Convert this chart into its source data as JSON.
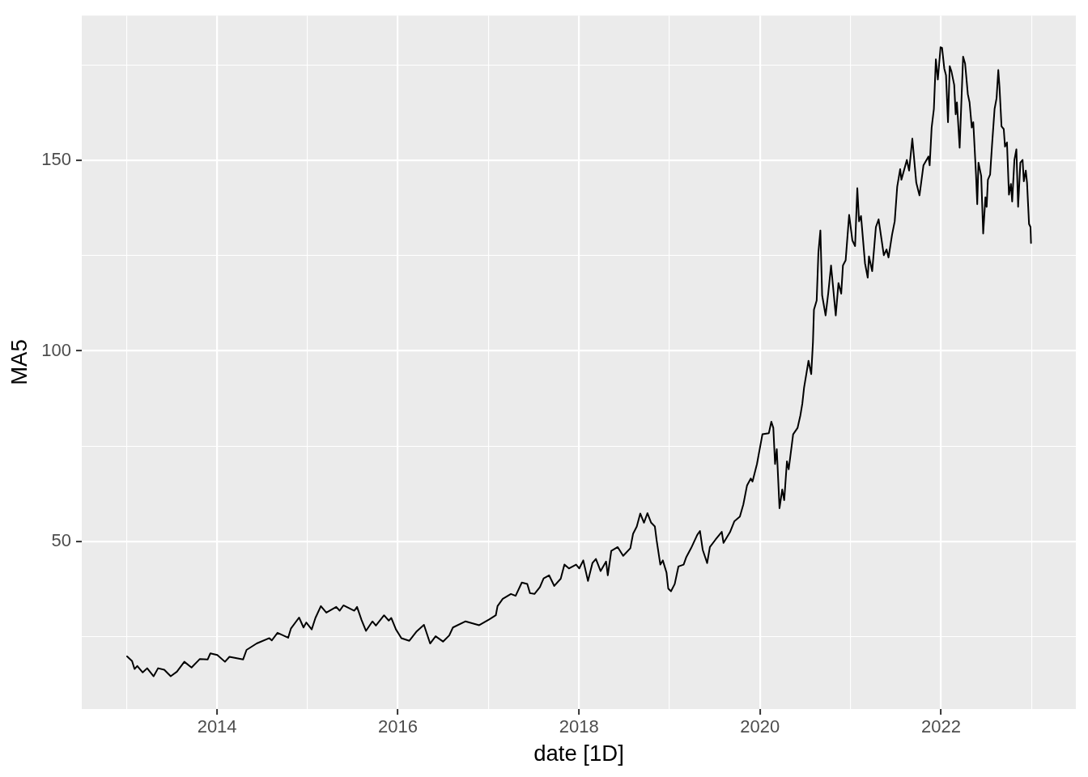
{
  "chart_data": {
    "type": "line",
    "xlabel": "date [1D]",
    "ylabel": "MA5",
    "x": [
      "2013-01-03",
      "2013-01-23",
      "2013-02-02",
      "2013-02-13",
      "2013-03-07",
      "2013-03-25",
      "2013-04-20",
      "2013-05-08",
      "2013-06-02",
      "2013-06-28",
      "2013-07-23",
      "2013-08-22",
      "2013-09-20",
      "2013-10-23",
      "2013-11-24",
      "2013-12-05",
      "2014-01-02",
      "2014-02-02",
      "2014-02-20",
      "2014-04-16",
      "2014-04-30",
      "2014-06-10",
      "2014-07-31",
      "2014-08-10",
      "2014-09-02",
      "2014-10-15",
      "2014-10-26",
      "2014-11-28",
      "2014-12-16",
      "2014-12-27",
      "2015-01-18",
      "2015-02-02",
      "2015-02-24",
      "2015-03-18",
      "2015-04-27",
      "2015-05-11",
      "2015-05-26",
      "2015-07-09",
      "2015-07-20",
      "2015-08-07",
      "2015-08-25",
      "2015-09-20",
      "2015-10-04",
      "2015-11-06",
      "2015-11-25",
      "2015-12-05",
      "2015-12-24",
      "2016-01-15",
      "2016-02-16",
      "2016-03-17",
      "2016-04-15",
      "2016-05-10",
      "2016-06-01",
      "2016-07-01",
      "2016-07-26",
      "2016-08-10",
      "2016-09-30",
      "2016-11-24",
      "2017-01-03",
      "2017-01-30",
      "2017-02-06",
      "2017-02-27",
      "2017-04-01",
      "2017-04-20",
      "2017-05-15",
      "2017-06-06",
      "2017-06-17",
      "2017-07-05",
      "2017-07-27",
      "2017-08-11",
      "2017-09-02",
      "2017-09-23",
      "2017-10-19",
      "2017-11-03",
      "2017-11-21",
      "2017-12-20",
      "2018-01-02",
      "2018-01-18",
      "2018-02-06",
      "2018-02-24",
      "2018-03-10",
      "2018-03-29",
      "2018-04-20",
      "2018-04-27",
      "2018-05-11",
      "2018-06-06",
      "2018-06-28",
      "2018-07-27",
      "2018-08-07",
      "2018-08-22",
      "2018-09-05",
      "2018-09-20",
      "2018-10-04",
      "2018-10-19",
      "2018-11-03",
      "2018-11-10",
      "2018-11-25",
      "2018-12-05",
      "2018-12-20",
      "2018-12-27",
      "2019-01-07",
      "2019-01-22",
      "2019-02-06",
      "2019-02-27",
      "2019-03-10",
      "2019-03-29",
      "2019-04-23",
      "2019-05-04",
      "2019-05-15",
      "2019-06-02",
      "2019-06-13",
      "2019-07-05",
      "2019-07-31",
      "2019-08-07",
      "2019-09-02",
      "2019-09-20",
      "2019-10-12",
      "2019-10-26",
      "2019-11-10",
      "2019-11-25",
      "2019-12-02",
      "2019-12-20",
      "2020-01-11",
      "2020-02-06",
      "2020-02-16",
      "2020-02-24",
      "2020-03-02",
      "2020-03-09",
      "2020-03-20",
      "2020-03-31",
      "2020-04-08",
      "2020-04-19",
      "2020-04-26",
      "2020-05-14",
      "2020-06-01",
      "2020-06-12",
      "2020-06-20",
      "2020-06-27",
      "2020-07-08",
      "2020-07-15",
      "2020-07-26",
      "2020-08-02",
      "2020-08-06",
      "2020-08-17",
      "2020-08-24",
      "2020-09-01",
      "2020-09-08",
      "2020-09-22",
      "2020-10-03",
      "2020-10-14",
      "2020-11-02",
      "2020-11-13",
      "2020-11-24",
      "2020-12-01",
      "2020-12-12",
      "2020-12-26",
      "2021-01-08",
      "2021-01-19",
      "2021-01-28",
      "2021-02-04",
      "2021-02-12",
      "2021-02-28",
      "2021-03-11",
      "2021-03-16",
      "2021-03-29",
      "2021-04-13",
      "2021-04-24",
      "2021-05-15",
      "2021-05-26",
      "2021-06-03",
      "2021-06-17",
      "2021-06-28",
      "2021-07-08",
      "2021-07-20",
      "2021-07-25",
      "2021-08-16",
      "2021-08-25",
      "2021-09-07",
      "2021-09-23",
      "2021-10-06",
      "2021-10-22",
      "2021-11-11",
      "2021-11-16",
      "2021-11-24",
      "2021-12-03",
      "2021-12-11",
      "2021-12-19",
      "2021-12-30",
      "2022-01-05",
      "2022-01-14",
      "2022-01-21",
      "2022-01-29",
      "2022-02-05",
      "2022-02-12",
      "2022-02-23",
      "2022-03-01",
      "2022-03-06",
      "2022-03-17",
      "2022-03-31",
      "2022-04-08",
      "2022-04-19",
      "2022-04-26",
      "2022-05-05",
      "2022-05-11",
      "2022-05-22",
      "2022-05-27",
      "2022-06-01",
      "2022-06-12",
      "2022-06-20",
      "2022-06-29",
      "2022-07-04",
      "2022-07-09",
      "2022-07-18",
      "2022-07-26",
      "2022-08-05",
      "2022-08-13",
      "2022-08-20",
      "2022-08-25",
      "2022-09-02",
      "2022-09-11",
      "2022-09-16",
      "2022-09-24",
      "2022-10-02",
      "2022-10-10",
      "2022-10-15",
      "2022-10-24",
      "2022-11-01",
      "2022-11-08",
      "2022-11-17",
      "2022-11-26",
      "2022-12-01",
      "2022-12-09",
      "2022-12-14",
      "2022-12-22",
      "2022-12-28",
      "2022-12-30"
    ],
    "series": [
      {
        "color": "#000000",
        "values": [
          19.8,
          18.6,
          16.5,
          17.3,
          15.6,
          16.7,
          14.6,
          16.7,
          16.3,
          14.6,
          15.8,
          18.4,
          16.9,
          19.1,
          19.0,
          20.6,
          20.2,
          18.4,
          19.7,
          19.0,
          21.5,
          23.2,
          24.6,
          24.0,
          26.0,
          24.7,
          27.1,
          30.0,
          27.4,
          28.7,
          26.9,
          29.9,
          33.0,
          31.3,
          32.8,
          31.8,
          33.2,
          31.8,
          32.8,
          29.4,
          26.5,
          29.0,
          27.9,
          30.6,
          29.2,
          29.9,
          26.9,
          24.6,
          23.9,
          26.4,
          28.1,
          23.2,
          25.1,
          23.7,
          25.3,
          27.4,
          29.0,
          28.0,
          29.5,
          30.6,
          33.0,
          34.9,
          36.2,
          35.7,
          39.2,
          38.8,
          36.4,
          36.2,
          38.0,
          40.3,
          41.1,
          38.3,
          40.2,
          43.9,
          42.9,
          43.9,
          42.9,
          45.0,
          39.6,
          44.3,
          45.4,
          42.2,
          44.7,
          41.1,
          47.5,
          48.5,
          46.2,
          48.2,
          52.0,
          53.9,
          57.3,
          54.9,
          57.4,
          54.9,
          53.9,
          50.3,
          43.9,
          45.0,
          41.8,
          37.6,
          36.9,
          38.8,
          43.4,
          43.9,
          45.9,
          48.2,
          51.7,
          52.7,
          47.8,
          44.3,
          48.5,
          50.4,
          52.5,
          49.6,
          52.4,
          55.3,
          56.5,
          59.7,
          64.7,
          66.5,
          65.7,
          70.3,
          78.1,
          78.4,
          81.4,
          79.8,
          70.3,
          74.2,
          58.7,
          63.6,
          60.8,
          71.0,
          68.9,
          78.1,
          79.8,
          83.0,
          86.1,
          90.3,
          94.6,
          97.4,
          93.9,
          102.3,
          110.8,
          113.2,
          125.9,
          131.6,
          114.6,
          109.3,
          115.3,
          122.4,
          109.3,
          117.8,
          115.0,
          122.4,
          123.8,
          135.7,
          129.0,
          127.5,
          142.7,
          134.0,
          135.4,
          123.0,
          119.2,
          124.8,
          120.9,
          132.5,
          134.5,
          125.1,
          126.6,
          124.5,
          130.4,
          134.0,
          143.1,
          147.7,
          144.9,
          150.1,
          147.3,
          155.7,
          144.1,
          140.8,
          148.7,
          151.0,
          148.7,
          158.6,
          163.5,
          176.5,
          171.2,
          179.7,
          179.5,
          174.1,
          172.3,
          160.0,
          174.7,
          173.3,
          169.8,
          162.1,
          165.2,
          153.3,
          177.2,
          175.4,
          167.4,
          165.2,
          158.6,
          160.0,
          146.3,
          138.5,
          149.4,
          145.9,
          130.8,
          140.3,
          137.8,
          144.9,
          146.3,
          154.3,
          163.5,
          166.3,
          173.7,
          169.1,
          158.9,
          158.2,
          153.6,
          154.7,
          141.0,
          143.8,
          139.2,
          150.1,
          152.9,
          137.8,
          149.4,
          150.1,
          144.5,
          147.3,
          144.1,
          133.3,
          132.5,
          128.3
        ]
      }
    ],
    "xlim": [
      "2012-07-04",
      "2023-06-29"
    ],
    "ylim": [
      6,
      188
    ],
    "xticks": [
      {
        "value": "2013",
        "label": null
      },
      "2014",
      {
        "value": "2015",
        "label": null
      },
      "2016",
      {
        "value": "2017",
        "label": null
      },
      "2018",
      {
        "value": "2019",
        "label": null
      },
      "2020",
      {
        "value": "2021",
        "label": null
      },
      "2022",
      {
        "value": "2023",
        "label": null
      }
    ],
    "yticks": [
      {
        "value": 25,
        "label": null
      },
      50,
      {
        "value": 75,
        "label": null
      },
      100,
      {
        "value": 125,
        "label": null
      },
      150,
      {
        "value": 175,
        "label": null
      }
    ],
    "grid": true
  }
}
